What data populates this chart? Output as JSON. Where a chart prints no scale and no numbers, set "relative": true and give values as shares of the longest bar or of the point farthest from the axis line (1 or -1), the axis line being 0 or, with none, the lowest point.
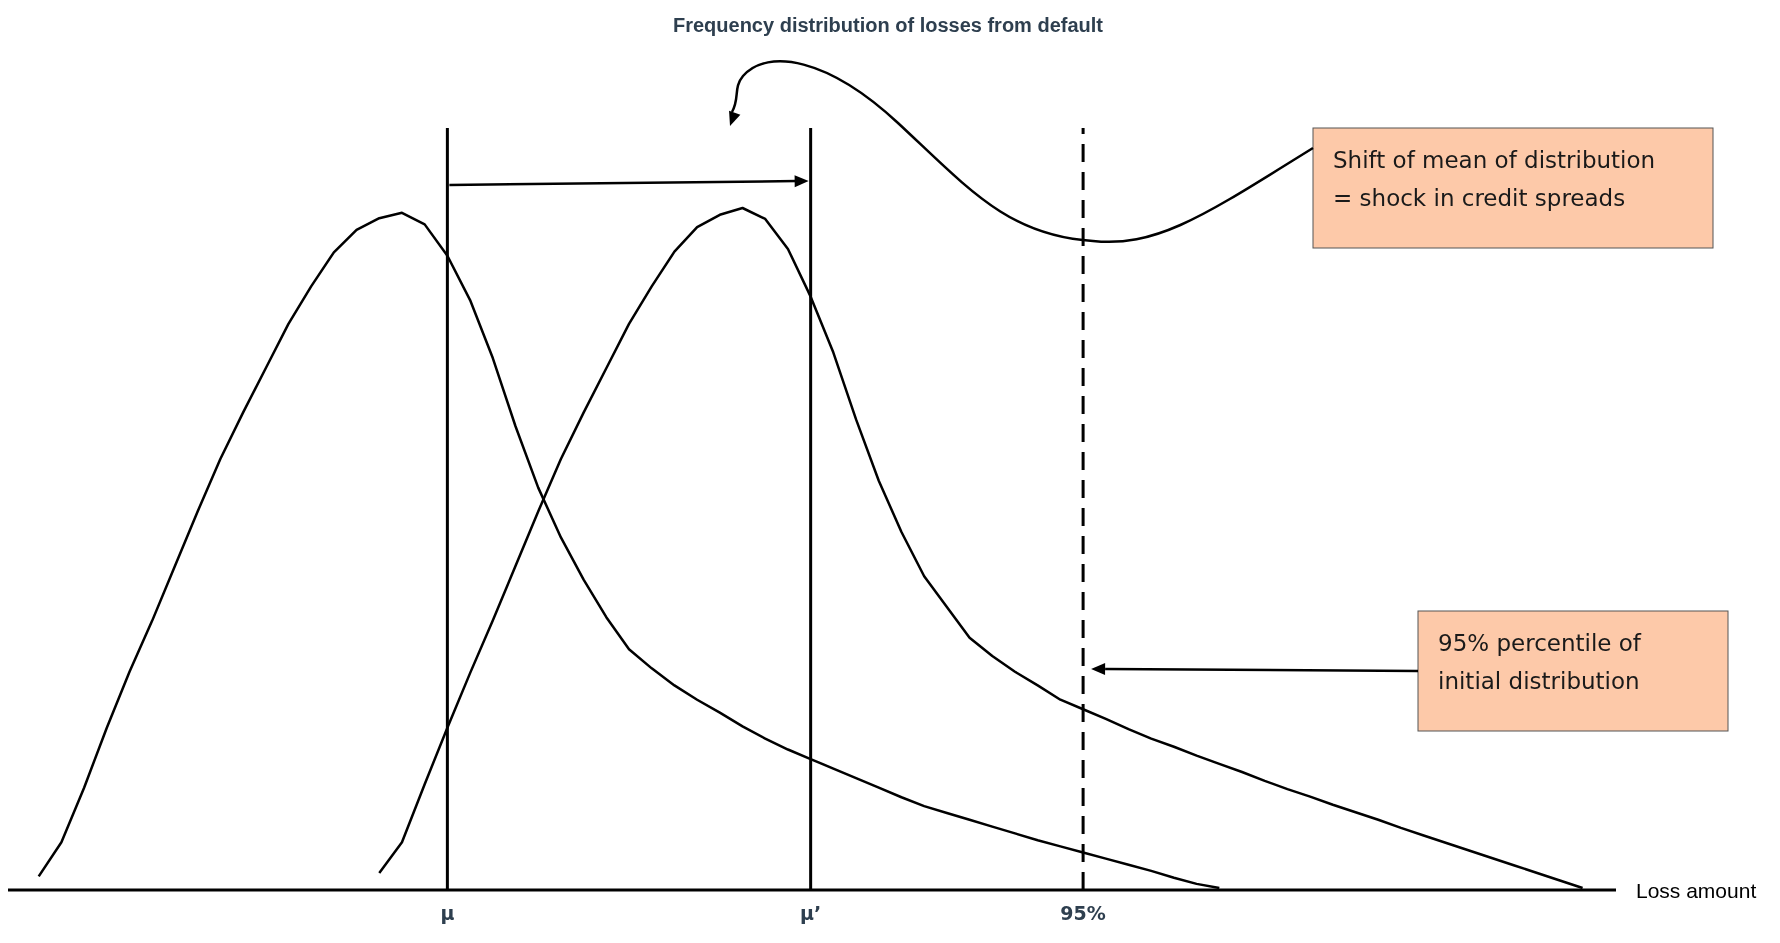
{
  "chart_data": {
    "type": "line",
    "title": "Frequency distribution of losses from default",
    "xlabel": "Loss amount",
    "relative": true,
    "marker": "none",
    "line_style": "solid",
    "categories": [
      null,
      null,
      null,
      null,
      null,
      null,
      null,
      null,
      null,
      null,
      null,
      null,
      null,
      null,
      null,
      null,
      null,
      null,
      null,
      "μ",
      null,
      null,
      null,
      null,
      null,
      null,
      null,
      null,
      null,
      null,
      null,
      null,
      null,
      null,
      null,
      "μ’",
      null,
      null,
      null,
      null,
      null,
      null,
      null,
      null,
      null,
      null,
      null,
      "95%",
      null,
      null,
      null,
      null,
      null,
      null,
      null,
      null,
      null,
      null,
      null,
      null,
      null,
      null,
      null,
      null,
      null,
      null,
      null,
      null,
      null,
      null,
      null,
      null
    ],
    "series": [
      {
        "color": "#000000",
        "values": [
          null,
          0.02,
          0.07,
          0.15,
          0.238,
          0.32,
          0.395,
          0.475,
          0.555,
          0.632,
          0.7,
          0.765,
          0.83,
          0.885,
          0.935,
          0.968,
          0.985,
          0.993,
          0.976,
          0.93,
          0.865,
          0.78,
          0.68,
          0.59,
          0.517,
          0.455,
          0.4,
          0.353,
          0.325,
          0.3,
          0.279,
          0.26,
          0.24,
          0.222,
          0.206,
          0.192,
          0.178,
          0.164,
          0.15,
          0.136,
          0.123,
          0.113,
          0.103,
          0.093,
          0.083,
          0.073,
          0.064,
          0.055,
          0.046,
          0.037,
          0.028,
          0.018,
          0.009,
          0.003,
          null,
          null,
          null,
          null,
          null,
          null,
          null,
          null,
          null,
          null,
          null,
          null,
          null,
          null,
          null,
          null,
          null,
          null
        ]
      },
      {
        "color": "#000000",
        "values": [
          null,
          null,
          null,
          null,
          null,
          null,
          null,
          null,
          null,
          null,
          null,
          null,
          null,
          null,
          null,
          null,
          0.025,
          0.07,
          0.155,
          0.238,
          0.318,
          0.395,
          0.475,
          0.555,
          0.632,
          0.7,
          0.765,
          0.83,
          0.885,
          0.936,
          0.972,
          0.99,
          1,
          0.984,
          0.94,
          0.87,
          0.788,
          0.69,
          0.6,
          0.525,
          0.46,
          0.415,
          0.37,
          0.343,
          0.32,
          0.3,
          0.279,
          0.265,
          0.251,
          0.236,
          0.222,
          0.21,
          0.197,
          0.185,
          0.173,
          0.16,
          0.148,
          0.137,
          0.125,
          0.114,
          0.103,
          0.091,
          0.08,
          0.069,
          0.058,
          0.047,
          0.036,
          0.025,
          0.014,
          0.003,
          null,
          null
        ]
      }
    ],
    "ref_lines": [
      {
        "axis": "x",
        "value": "μ",
        "color": "#000000",
        "line_style": "solid"
      },
      {
        "axis": "x",
        "value": "μ’",
        "color": "#000000",
        "line_style": "solid"
      },
      {
        "axis": "x",
        "value": "95%",
        "color": "#000000",
        "line_style": "dashed"
      }
    ],
    "annotations": [
      "Shift of mean of distribution\n= shock in credit spreads",
      "95% percentile of\ninitial distribution"
    ]
  }
}
